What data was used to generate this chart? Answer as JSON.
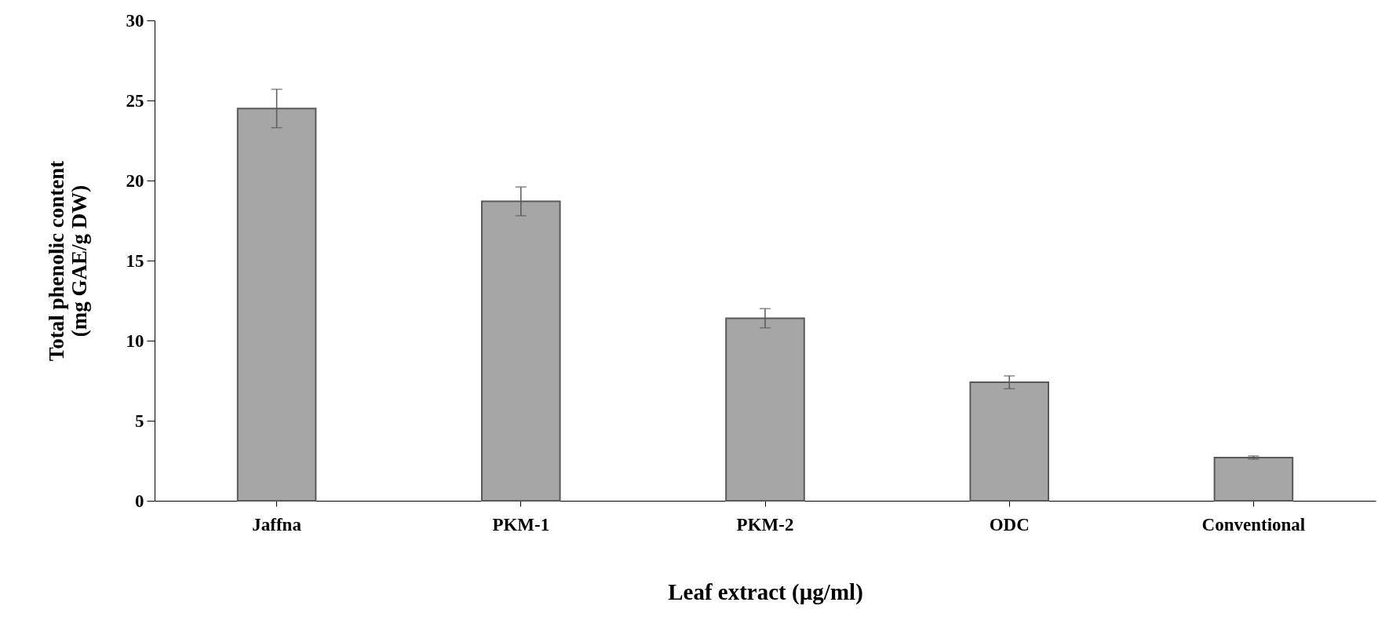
{
  "chart_data": {
    "type": "bar",
    "xlabel": "Leaf extract (µg/ml)",
    "ylabel": "Total phenolic content\n(mg GAE/g DW)",
    "categories": [
      "Jaffna",
      "PKM-1",
      "PKM-2",
      "ODC",
      "Conventional"
    ],
    "values": [
      24.5,
      18.7,
      11.4,
      7.4,
      2.7
    ],
    "errors": [
      1.2,
      0.9,
      0.6,
      0.4,
      0.1
    ],
    "color": "#a6a6a6",
    "ylim": [
      0,
      30
    ],
    "yticks": [
      0,
      5,
      10,
      15,
      20,
      25,
      30
    ],
    "grid": false
  }
}
